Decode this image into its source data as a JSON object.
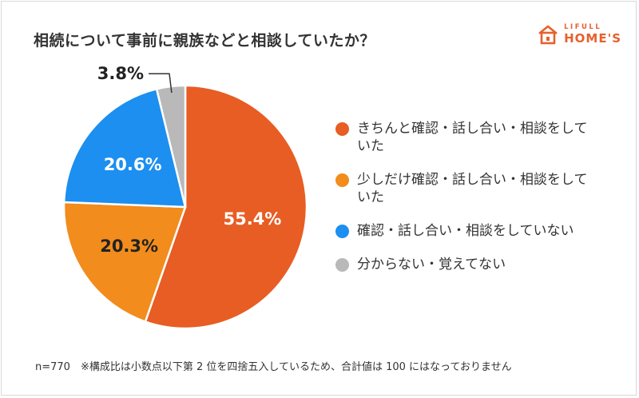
{
  "title": "相続について事前に親族などと相談していたか？",
  "logo": {
    "small": "LIFULL",
    "big": "HOME'S",
    "color": "#e8602e"
  },
  "chart_data": {
    "type": "pie",
    "slices": [
      {
        "label": "きちんと確認・話し合い・相談をしていた",
        "value": 55.4,
        "value_label": "55.4%",
        "color": "#e75d24"
      },
      {
        "label": "少しだけ確認・話し合い・相談をしていた",
        "value": 20.3,
        "value_label": "20.3%",
        "color": "#f28c1c"
      },
      {
        "label": "確認・話し合い・相談をしていない",
        "value": 20.6,
        "value_label": "20.6%",
        "color": "#1c8ff0"
      },
      {
        "label": "分からない・覚えてない",
        "value": 3.8,
        "value_label": "3.8%",
        "color": "#b9b9b9"
      }
    ],
    "start": "12 o'clock",
    "direction": "clockwise",
    "legend": "right"
  },
  "footnote": "n=770　※構成比は小数点以下第 2 位を四捨五入しているため、合計値は 100 にはなっておりません"
}
